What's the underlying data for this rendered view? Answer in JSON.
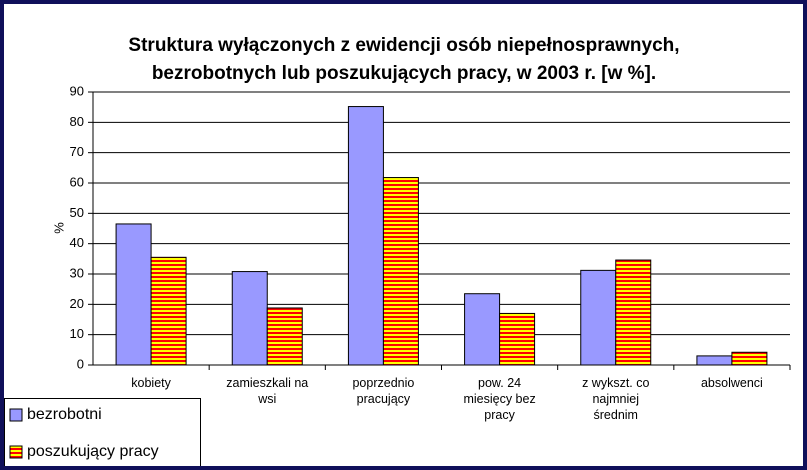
{
  "chart_data": {
    "type": "bar",
    "title": [
      "Struktura wyłączonych z ewidencji osób niepełnosprawnych,",
      "bezrobotnych lub poszukujących pracy, w 2003 r. [w %]."
    ],
    "ylabel": "%",
    "categories": [
      "kobiety",
      "zamieszkali na wsi",
      "poprzednio pracujący",
      "pow. 24 miesięcy bez pracy",
      "z wykszt. co najmniej średnim",
      "absolwenci"
    ],
    "series": [
      {
        "name": "bezrobotni",
        "color": "#9999ff",
        "values": [
          46.5,
          30.8,
          85.2,
          23.5,
          31.2,
          3
        ]
      },
      {
        "name": "poszukujący pracy",
        "color": "#ff0000",
        "stripe": "#ffff00",
        "values": [
          35.5,
          18.8,
          61.8,
          17,
          34.6,
          4.2
        ]
      }
    ],
    "ylim": [
      0,
      90
    ],
    "yticks": [
      0,
      10,
      20,
      30,
      40,
      50,
      60,
      70,
      80,
      90
    ],
    "grid": true,
    "legend": "bottom-left"
  }
}
